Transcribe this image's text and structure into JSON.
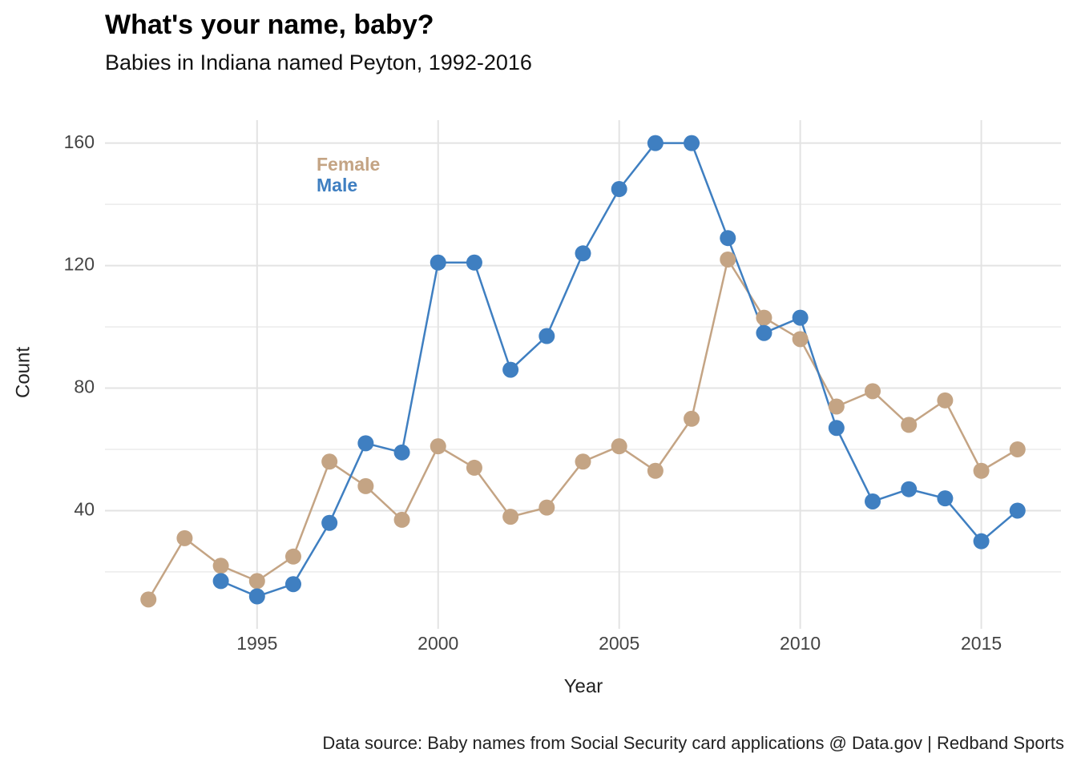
{
  "chart_data": {
    "type": "line",
    "title": "What's your name, baby?",
    "subtitle": "Babies in Indiana named Peyton, 1992-2016",
    "x_label": "Year",
    "y_label": "Count",
    "caption": "Data source: Baby names from Social Security card applications @ Data.gov | Redband Sports",
    "x": [
      1992,
      1993,
      1994,
      1995,
      1996,
      1997,
      1998,
      1999,
      2000,
      2001,
      2002,
      2003,
      2004,
      2005,
      2006,
      2007,
      2008,
      2009,
      2010,
      2011,
      2012,
      2013,
      2014,
      2015,
      2016
    ],
    "series": [
      {
        "name": "Female",
        "color": "#c4a484",
        "values": [
          11,
          31,
          22,
          17,
          25,
          56,
          48,
          37,
          61,
          54,
          38,
          41,
          56,
          61,
          53,
          70,
          122,
          103,
          96,
          74,
          79,
          68,
          76,
          53,
          60
        ]
      },
      {
        "name": "Male",
        "color": "#3f7fc1",
        "values": [
          null,
          null,
          17,
          12,
          16,
          36,
          62,
          59,
          121,
          121,
          86,
          97,
          124,
          145,
          160,
          160,
          129,
          98,
          103,
          67,
          43,
          47,
          44,
          30,
          40
        ]
      }
    ],
    "xlim": [
      1990.8,
      2017.2
    ],
    "xticks": [
      1995,
      2000,
      2005,
      2010,
      2015
    ],
    "ylim": [
      3.5,
      167.5
    ],
    "yticks": [
      40,
      80,
      120,
      160
    ],
    "grid": true
  }
}
